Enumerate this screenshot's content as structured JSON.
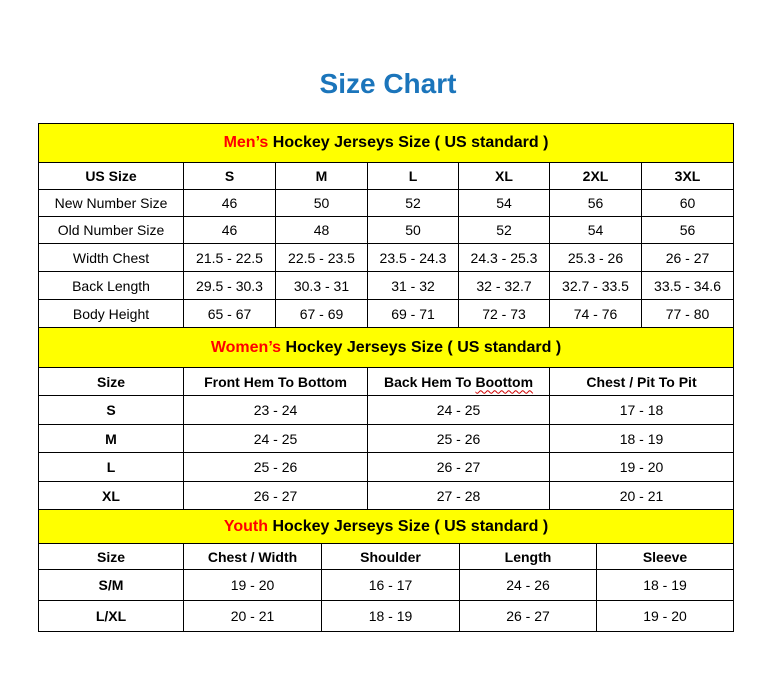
{
  "title": "Size Chart",
  "colors": {
    "title": "#1b75bb",
    "header_bg": "#ffff00",
    "accent_red": "#ff0000"
  },
  "mens": {
    "title_red": "Men’s",
    "title_rest": " Hockey Jerseys Size ( US standard )",
    "columns": [
      "US Size",
      "S",
      "M",
      "L",
      "XL",
      "2XL",
      "3XL"
    ],
    "rows": [
      [
        "New Number Size",
        "46",
        "50",
        "52",
        "54",
        "56",
        "60"
      ],
      [
        "Old Number Size",
        "46",
        "48",
        "50",
        "52",
        "54",
        "56"
      ],
      [
        "Width Chest",
        "21.5 - 22.5",
        "22.5 - 23.5",
        "23.5 - 24.3",
        "24.3 - 25.3",
        "25.3 - 26",
        "26 - 27"
      ],
      [
        "Back Length",
        "29.5 - 30.3",
        "30.3 - 31",
        "31 - 32",
        "32 - 32.7",
        "32.7 - 33.5",
        "33.5 - 34.6"
      ],
      [
        "Body Height",
        "65 - 67",
        "67 - 69",
        "69 - 71",
        "72 - 73",
        "74 - 76",
        "77 - 80"
      ]
    ]
  },
  "womens": {
    "title_red": "Women’s",
    "title_rest": " Hockey Jerseys Size ( US standard )",
    "columns": [
      "Size",
      "Front Hem To Bottom",
      "Back Hem To Boottom",
      "Chest / Pit To Pit"
    ],
    "rows": [
      [
        "S",
        "23 - 24",
        "24 - 25",
        "17 - 18"
      ],
      [
        "M",
        "24 - 25",
        "25 - 26",
        "18 - 19"
      ],
      [
        "L",
        "25 - 26",
        "26 - 27",
        "19 - 20"
      ],
      [
        "XL",
        "26 - 27",
        "27 - 28",
        "20 - 21"
      ]
    ]
  },
  "youth": {
    "title_red": "Youth",
    "title_rest": " Hockey Jerseys Size ( US standard )",
    "columns": [
      "Size",
      "Chest / Width",
      "Shoulder",
      "Length",
      "Sleeve"
    ],
    "rows": [
      [
        "S/M",
        "19 - 20",
        "16 - 17",
        "24 - 26",
        "18 - 19"
      ],
      [
        "L/XL",
        "20 - 21",
        "18 - 19",
        "26 - 27",
        "19 - 20"
      ]
    ]
  }
}
